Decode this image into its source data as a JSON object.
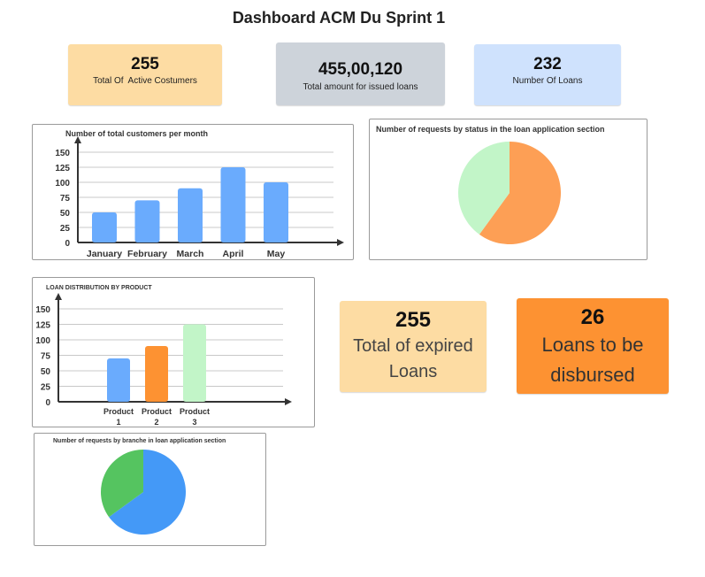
{
  "page": {
    "title": "Dashboard ACM Du Sprint 1"
  },
  "kpis": {
    "active_customers": {
      "value": "255",
      "label": "Total Of  Active Costumers",
      "color": "#fddca3"
    },
    "issued_amount": {
      "value": "455,00,120",
      "label": "Total amount for issued loans",
      "color": "#cdd3da"
    },
    "loans_count": {
      "value": "232",
      "label": "Number Of Loans",
      "color": "#cfe2fd"
    },
    "expired_loans": {
      "value": "255",
      "label_line1": "Total of expired",
      "label_line2": "Loans",
      "color": "#fddca3"
    },
    "to_disburse": {
      "value": "26",
      "label_line1": "Loans to be",
      "label_line2": "disbursed",
      "color": "#fd9232"
    }
  },
  "chart_data": [
    {
      "id": "customers-per-month",
      "type": "bar",
      "title": "Number of total customers per month",
      "categories": [
        "January",
        "February",
        "March",
        "April",
        "May"
      ],
      "values": [
        50,
        70,
        90,
        125,
        100
      ],
      "yticks": [
        0,
        25,
        50,
        75,
        100,
        125,
        150
      ],
      "ylim": [
        0,
        150
      ],
      "grid": true,
      "color": "#6aabfd"
    },
    {
      "id": "requests-by-status",
      "type": "pie",
      "title": "Number of requests by status in the loan application section",
      "slices": [
        {
          "value": 60,
          "color": "#fd9f55"
        },
        {
          "value": 40,
          "color": "#c2f5c8"
        }
      ]
    },
    {
      "id": "loan-distribution-by-product",
      "type": "bar",
      "title": "LOAN DISTRIBUTION BY PRODUCT",
      "categories": [
        {
          "line1": "Product",
          "line2": "1"
        },
        {
          "line1": "Product",
          "line2": "2"
        },
        {
          "line1": "Product",
          "line2": "3"
        }
      ],
      "values": [
        70,
        90,
        125
      ],
      "colors": [
        "#6aabfd",
        "#fd9232",
        "#c2f5c8"
      ],
      "yticks": [
        0,
        25,
        50,
        75,
        100,
        125,
        150
      ],
      "ylim": [
        0,
        150
      ],
      "grid": true
    },
    {
      "id": "requests-by-branch",
      "type": "pie",
      "title": "Number of requests by branche in loan application section",
      "slices": [
        {
          "value": 65,
          "color": "#4499f7"
        },
        {
          "value": 35,
          "color": "#55c460"
        }
      ]
    }
  ]
}
